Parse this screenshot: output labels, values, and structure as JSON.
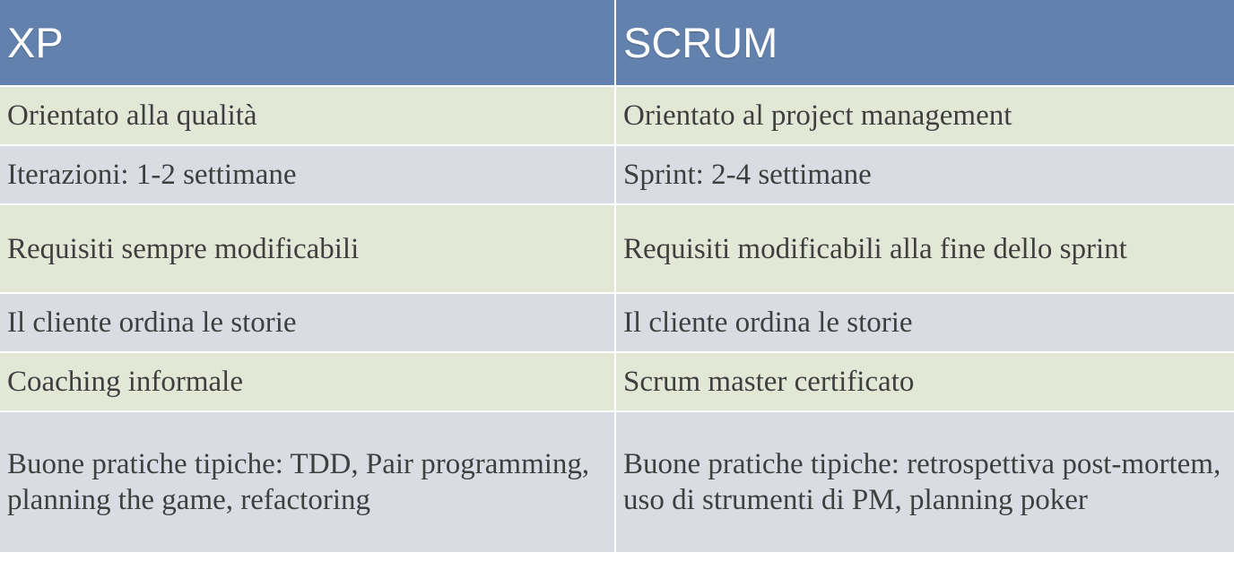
{
  "table": {
    "headers": [
      "XP",
      "SCRUM"
    ],
    "rows": [
      [
        "Orientato alla qualità",
        "Orientato al project management"
      ],
      [
        "Iterazioni: 1-2 settimane",
        "Sprint: 2-4 settimane"
      ],
      [
        "Requisiti sempre modificabili",
        "Requisiti modificabili alla fine dello sprint"
      ],
      [
        "Il cliente ordina le storie",
        "Il cliente ordina le storie"
      ],
      [
        "Coaching informale",
        "Scrum master certificato"
      ],
      [
        "Buone pratiche tipiche: TDD, Pair programming, planning the game, refactoring",
        "Buone pratiche tipiche: retrospettiva post-mortem, uso di strumenti di PM, planning poker"
      ]
    ]
  },
  "colors": {
    "header_bg": "#6282ad",
    "row_odd_bg": "#e3e8d6",
    "row_even_bg": "#d9dde3",
    "text": "#3f3f3f"
  }
}
